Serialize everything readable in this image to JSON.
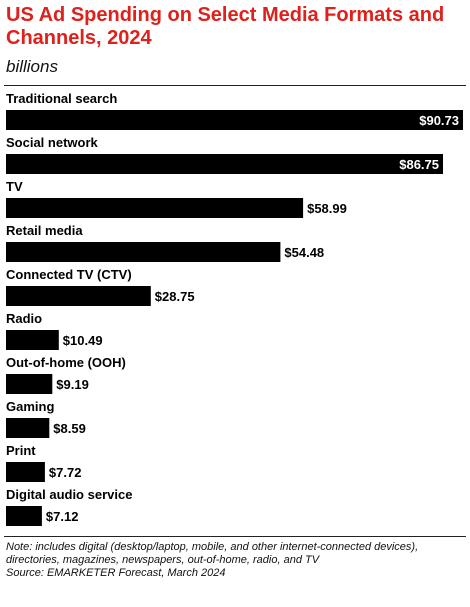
{
  "header": {
    "title": "US Ad Spending on Select Media Formats and Channels, 2024",
    "subtitle": "billions"
  },
  "footer": {
    "note": "Note: includes digital (desktop/laptop, mobile, and other internet-connected devices), directories, magazines, newspapers, out-of-home, radio, and TV",
    "source": "Source: EMARKETER Forecast, March 2024"
  },
  "colors": {
    "title": "#e0201b",
    "bar": "#000000",
    "label_in_bar": "#ffffff"
  },
  "chart_data": {
    "type": "bar",
    "orientation": "horizontal",
    "title": "US Ad Spending on Select Media Formats and Channels, 2024",
    "subtitle": "billions",
    "categories": [
      "Traditional search",
      "Social network",
      "TV",
      "Retail media",
      "Connected TV (CTV)",
      "Radio",
      "Out-of-home (OOH)",
      "Gaming",
      "Print",
      "Digital audio service"
    ],
    "values": [
      90.73,
      86.75,
      58.99,
      54.48,
      28.75,
      10.49,
      9.19,
      8.59,
      7.72,
      7.12
    ],
    "value_labels": [
      "$90.73",
      "$86.75",
      "$58.99",
      "$54.48",
      "$28.75",
      "$10.49",
      "$9.19",
      "$8.59",
      "$7.72",
      "$7.12"
    ],
    "xlim": [
      0,
      90.73
    ],
    "grid": false,
    "legend": "none"
  }
}
